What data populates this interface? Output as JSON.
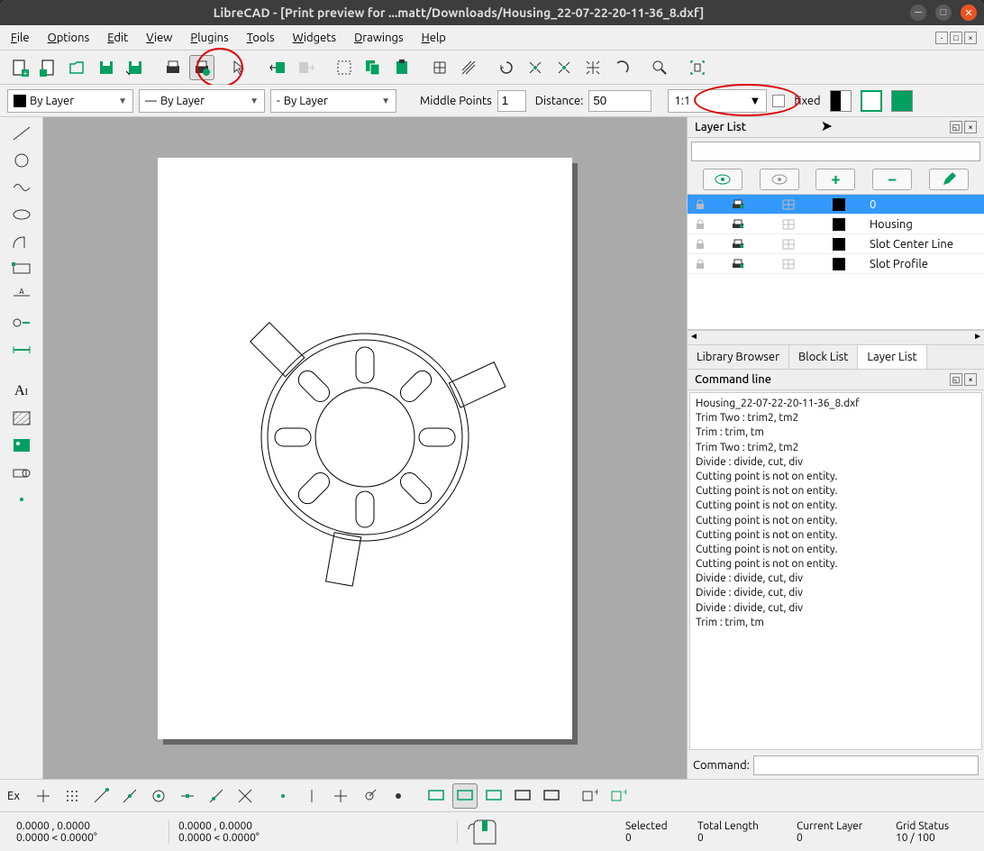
{
  "window": {
    "title": "LibreCAD - [Print preview for ...matt/Downloads/Housing_22-07-22-20-11-36_8.dxf]"
  },
  "menu": {
    "items": [
      "File",
      "Options",
      "Edit",
      "View",
      "Plugins",
      "Tools",
      "Widgets",
      "Drawings",
      "Help"
    ]
  },
  "toolbar2": {
    "layer_combo": "By Layer",
    "linetype_combo": "By Layer",
    "lineweight_combo": "By Layer",
    "middle_label": "Middle Points",
    "middle_value": "1",
    "distance_label": "Distance:",
    "distance_value": "50",
    "scale_value": "1:1",
    "fixed_label": "fixed"
  },
  "layer_panel": {
    "title": "Layer List",
    "layers": [
      {
        "name": "0",
        "selected": true
      },
      {
        "name": "Housing",
        "selected": false
      },
      {
        "name": "Slot Center Line",
        "selected": false
      },
      {
        "name": "Slot Profile",
        "selected": false
      }
    ]
  },
  "tabs": {
    "items": [
      "Library Browser",
      "Block List",
      "Layer List"
    ],
    "active": 2
  },
  "cmd": {
    "title": "Command line",
    "log": [
      "Housing_22-07-22-20-11-36_8.dxf",
      "Trim Two : trim2, tm2",
      "Trim : trim, tm",
      "Trim Two : trim2, tm2",
      "Divide : divide, cut, div",
      "Cutting point is not on entity.",
      "Cutting point is not on entity.",
      "Cutting point is not on entity.",
      "Cutting point is not on entity.",
      "Cutting point is not on entity.",
      "Cutting point is not on entity.",
      "Cutting point is not on entity.",
      "Divide : divide, cut, div",
      "Divide : divide, cut, div",
      "Divide : divide, cut, div",
      "Trim : trim, tm"
    ],
    "prompt": "Command:"
  },
  "bottom": {
    "ex": "Ex"
  },
  "status": {
    "coord1": "0.0000 , 0.0000",
    "coord2": "0.0000 < 0.0000°",
    "coord3": "0.0000 , 0.0000",
    "coord4": "0.0000 < 0.0000°",
    "h_sel": "Selected",
    "h_len": "Total Length",
    "h_layer": "Current Layer",
    "h_grid": "Grid Status",
    "v_sel": "0",
    "v_len": "0",
    "v_layer": "0",
    "v_grid": "10 / 100"
  },
  "colors": {
    "accent": "#00a060",
    "highlight": "#3399ff",
    "circle": "#d00000"
  }
}
